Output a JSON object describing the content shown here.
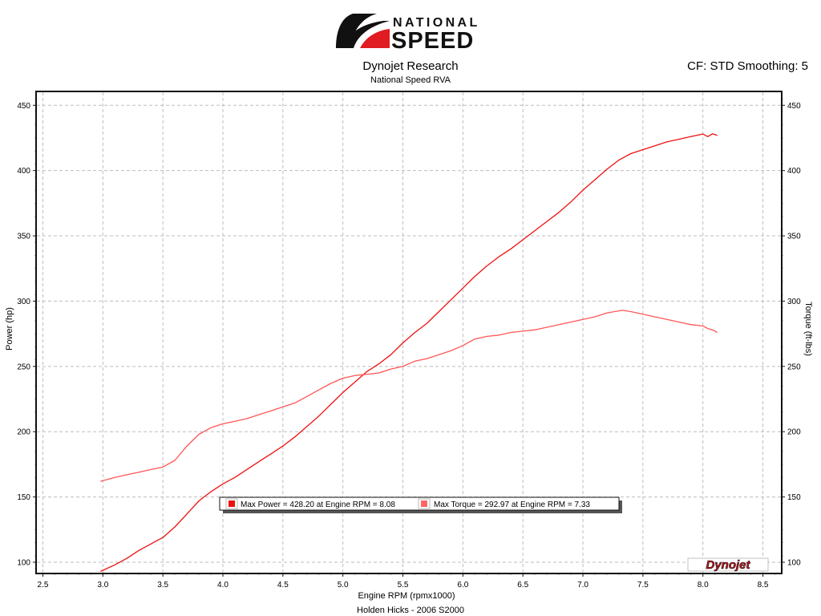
{
  "logo": {
    "brand_top": "NATIONAL",
    "brand_bottom": "SPEED",
    "badge_text": "Dynojet"
  },
  "header": {
    "title": "Dynojet Research",
    "subtitle": "National Speed RVA",
    "settings": "CF: STD Smoothing: 5"
  },
  "footer": {
    "run_label": "Holden Hicks - 2006 S2000"
  },
  "legend": {
    "power_label": "Max Power = 428.20 at Engine RPM = 8.08",
    "torque_label": "Max Torque = 292.97 at Engine RPM = 7.33"
  },
  "colors": {
    "power": "#ee1111",
    "torque": "#ff5555",
    "grid": "#bdbdbd",
    "logo_red": "#e01b22"
  },
  "chart_data": {
    "type": "line",
    "title": "Dynojet Research",
    "subtitle": "National Speed RVA",
    "xlabel": "Engine RPM (rpmx1000)",
    "ylabel": "Power (hp)",
    "y2label": "Torque (ft-lbs)",
    "xlim": [
      2.45,
      8.65
    ],
    "ylim": [
      92,
      460
    ],
    "x_ticks": [
      "2.5",
      "3.0",
      "3.5",
      "4.0",
      "4.5",
      "5.0",
      "5.5",
      "6.0",
      "6.5",
      "7.0",
      "7.5",
      "8.0",
      "8.5"
    ],
    "y_ticks": [
      "100",
      "150",
      "200",
      "250",
      "300",
      "350",
      "400",
      "450"
    ],
    "grid": true,
    "legend_position": "bottom-center",
    "series": [
      {
        "name": "Power",
        "axis": "left",
        "x": [
          2.98,
          3.1,
          3.2,
          3.3,
          3.4,
          3.5,
          3.6,
          3.7,
          3.8,
          3.9,
          4.0,
          4.1,
          4.2,
          4.3,
          4.4,
          4.5,
          4.6,
          4.7,
          4.8,
          4.9,
          5.0,
          5.1,
          5.2,
          5.3,
          5.4,
          5.5,
          5.6,
          5.7,
          5.8,
          5.9,
          6.0,
          6.1,
          6.2,
          6.3,
          6.4,
          6.5,
          6.6,
          6.7,
          6.8,
          6.9,
          7.0,
          7.1,
          7.2,
          7.3,
          7.4,
          7.5,
          7.6,
          7.7,
          7.8,
          7.9,
          8.0,
          8.04,
          8.08,
          8.12
        ],
        "y": [
          93,
          98,
          103,
          109,
          114,
          119,
          127,
          137,
          147,
          154,
          160,
          165,
          171,
          177,
          183,
          189,
          196,
          204,
          212,
          221,
          230,
          238,
          246,
          252,
          259,
          268,
          276,
          283,
          292,
          301,
          310,
          319,
          327,
          334,
          340,
          347,
          354,
          361,
          368,
          376,
          385,
          393,
          401,
          408,
          413,
          416,
          419,
          422,
          424,
          426,
          428,
          426,
          428.2,
          427
        ]
      },
      {
        "name": "Torque",
        "axis": "right",
        "x": [
          2.98,
          3.1,
          3.2,
          3.3,
          3.4,
          3.5,
          3.6,
          3.7,
          3.8,
          3.9,
          4.0,
          4.1,
          4.2,
          4.3,
          4.4,
          4.5,
          4.6,
          4.7,
          4.8,
          4.9,
          5.0,
          5.1,
          5.2,
          5.3,
          5.4,
          5.5,
          5.6,
          5.7,
          5.8,
          5.9,
          6.0,
          6.1,
          6.2,
          6.3,
          6.4,
          6.5,
          6.6,
          6.7,
          6.8,
          6.9,
          7.0,
          7.1,
          7.2,
          7.33,
          7.4,
          7.5,
          7.6,
          7.7,
          7.8,
          7.9,
          8.0,
          8.04,
          8.08,
          8.12
        ],
        "y": [
          162,
          165,
          167,
          169,
          171,
          173,
          178,
          189,
          198,
          203,
          206,
          208,
          210,
          213,
          216,
          219,
          222,
          227,
          232,
          237,
          241,
          243,
          244,
          245,
          248,
          250,
          254,
          256,
          259,
          262,
          266,
          271,
          273,
          274,
          276,
          277,
          278,
          280,
          282,
          284,
          286,
          288,
          291,
          292.97,
          292,
          290,
          288,
          286,
          284,
          282,
          281,
          279,
          278,
          276
        ]
      }
    ]
  }
}
